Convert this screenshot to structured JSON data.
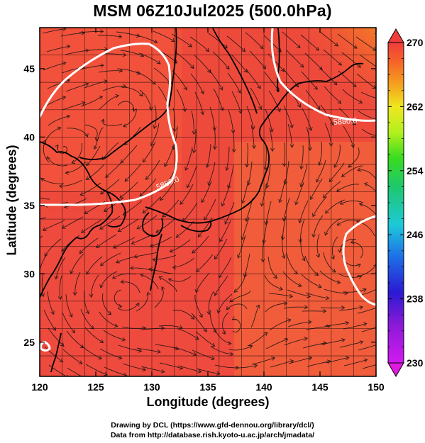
{
  "title": "MSM 06Z10Jul2025 (500.0hPa)",
  "map": {
    "xlabel": "Longitude (degrees)",
    "ylabel": "Latitude  (degrees)",
    "lon_range": [
      120,
      150
    ],
    "lat_range": [
      22.5,
      48
    ],
    "lon_ticks": [
      "120",
      "125",
      "130",
      "135",
      "140",
      "145",
      "150"
    ],
    "lat_ticks": [
      "25",
      "30",
      "35",
      "40",
      "45"
    ],
    "grid": true,
    "contour_labels": [
      "5880.0",
      "5880.0"
    ]
  },
  "colorbar": {
    "min": 230,
    "max": 270,
    "tick_labels": [
      "270",
      "262",
      "254",
      "246",
      "238",
      "230"
    ],
    "colors": [
      "#d21af0",
      "#8a1ad8",
      "#2a1ad2",
      "#1e6ee8",
      "#1ec8d8",
      "#1ec86e",
      "#3adc1e",
      "#b4f01e",
      "#f0e61e",
      "#f5a01e",
      "#f56428",
      "#f03c3c"
    ]
  },
  "footer": {
    "line1": "Drawing by DCL (https://www.gfd-dennou.org/library/dcl/)",
    "line2": "Data from http://database.rish.kyoto-u.ac.jp/arch/jmadata/"
  }
}
